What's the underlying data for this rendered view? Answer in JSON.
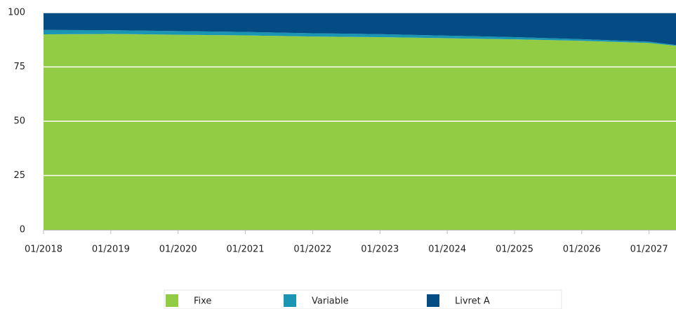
{
  "chart_data": {
    "type": "stacked_area",
    "x": [
      2018,
      2019,
      2020,
      2021,
      2022,
      2023,
      2024,
      2025,
      2026,
      2027,
      2027.4
    ],
    "series": [
      {
        "name": "Fixe",
        "color": "#92cc44",
        "values": [
          90,
          90.2,
          89.8,
          89.5,
          89,
          88.7,
          88.2,
          87.7,
          87,
          86,
          84.7
        ]
      },
      {
        "name": "Variable",
        "color": "#1a96b4",
        "values": [
          2,
          1.7,
          1.7,
          1.6,
          1.5,
          1.4,
          1.2,
          1,
          0.8,
          0.6,
          0.4
        ]
      },
      {
        "name": "Livret A",
        "color": "#034c84",
        "values": [
          8,
          8.1,
          8.5,
          8.9,
          9.5,
          9.9,
          10.6,
          11.3,
          12.2,
          13.4,
          14.9
        ]
      }
    ],
    "xlim": [
      2018,
      2027.4
    ],
    "xticks": [
      {
        "value": 2018,
        "label": "01/2018"
      },
      {
        "value": 2019,
        "label": "01/2019"
      },
      {
        "value": 2020,
        "label": "01/2020"
      },
      {
        "value": 2021,
        "label": "01/2021"
      },
      {
        "value": 2022,
        "label": "01/2022"
      },
      {
        "value": 2023,
        "label": "01/2023"
      },
      {
        "value": 2024,
        "label": "01/2024"
      },
      {
        "value": 2025,
        "label": "01/2025"
      },
      {
        "value": 2026,
        "label": "01/2026"
      },
      {
        "value": 2027,
        "label": "01/2027"
      }
    ],
    "ylim": [
      0,
      100
    ],
    "yticks": [
      0,
      25,
      50,
      75,
      100
    ],
    "grid": true,
    "legend": "bottom"
  }
}
